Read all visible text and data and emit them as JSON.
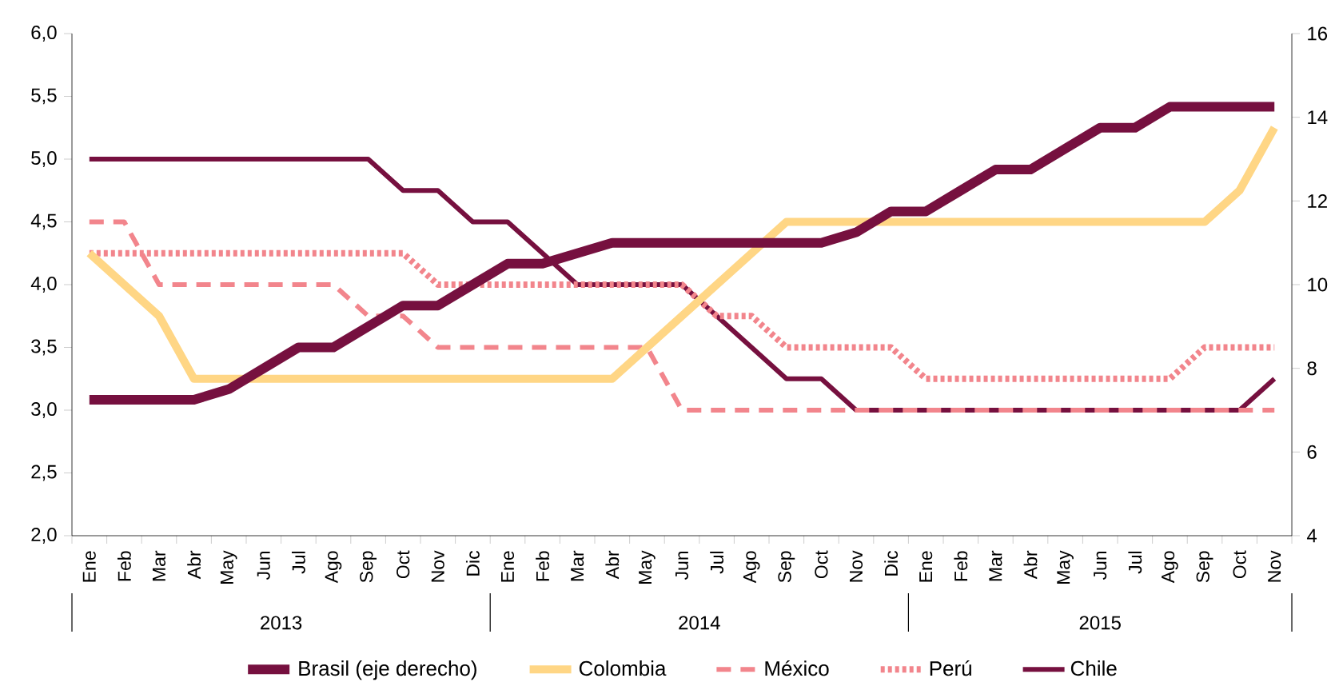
{
  "chart_data": {
    "type": "line",
    "categories": [
      "Ene",
      "Feb",
      "Mar",
      "Abr",
      "May",
      "Jun",
      "Jul",
      "Ago",
      "Sep",
      "Oct",
      "Nov",
      "Dic",
      "Ene",
      "Feb",
      "Mar",
      "Abr",
      "May",
      "Jun",
      "Jul",
      "Ago",
      "Sep",
      "Oct",
      "Nov",
      "Dic",
      "Ene",
      "Feb",
      "Mar",
      "Abr",
      "May",
      "Jun",
      "Jul",
      "Ago",
      "Sep",
      "Oct",
      "Nov"
    ],
    "series": [
      {
        "name": "Brasil (eje derecho)",
        "color": "#76103f",
        "axis": "y2",
        "line_style": "solid",
        "values": [
          7.25,
          7.25,
          7.25,
          7.25,
          7.5,
          8.0,
          8.5,
          8.5,
          9.0,
          9.5,
          9.5,
          10.0,
          10.5,
          10.5,
          10.75,
          11.0,
          11.0,
          11.0,
          11.0,
          11.0,
          11.0,
          11.0,
          11.25,
          11.75,
          11.75,
          12.25,
          12.75,
          12.75,
          13.25,
          13.75,
          13.75,
          14.25,
          14.25,
          14.25,
          14.25
        ]
      },
      {
        "name": "Colombia",
        "color": "#ffd685",
        "line_style": "solid",
        "values": [
          4.25,
          4.0,
          3.75,
          3.25,
          3.25,
          3.25,
          3.25,
          3.25,
          3.25,
          3.25,
          3.25,
          3.25,
          3.25,
          3.25,
          3.25,
          3.25,
          3.5,
          3.75,
          4.0,
          4.25,
          4.5,
          4.5,
          4.5,
          4.5,
          4.5,
          4.5,
          4.5,
          4.5,
          4.5,
          4.5,
          4.5,
          4.5,
          4.5,
          4.75,
          5.25
        ]
      },
      {
        "name": "México",
        "color": "#f2858c",
        "line_style": "dashed",
        "values": [
          4.5,
          4.5,
          4.0,
          4.0,
          4.0,
          4.0,
          4.0,
          4.0,
          3.75,
          3.75,
          3.5,
          3.5,
          3.5,
          3.5,
          3.5,
          3.5,
          3.5,
          3.0,
          3.0,
          3.0,
          3.0,
          3.0,
          3.0,
          3.0,
          3.0,
          3.0,
          3.0,
          3.0,
          3.0,
          3.0,
          3.0,
          3.0,
          3.0,
          3.0,
          3.0
        ]
      },
      {
        "name": "Perú",
        "color": "#f2858c",
        "line_style": "dotted",
        "values": [
          4.25,
          4.25,
          4.25,
          4.25,
          4.25,
          4.25,
          4.25,
          4.25,
          4.25,
          4.25,
          4.0,
          4.0,
          4.0,
          4.0,
          4.0,
          4.0,
          4.0,
          4.0,
          3.75,
          3.75,
          3.5,
          3.5,
          3.5,
          3.5,
          3.25,
          3.25,
          3.25,
          3.25,
          3.25,
          3.25,
          3.25,
          3.25,
          3.5,
          3.5,
          3.5
        ]
      },
      {
        "name": "Chile",
        "color": "#76103f",
        "line_style": "solid",
        "values": [
          5.0,
          5.0,
          5.0,
          5.0,
          5.0,
          5.0,
          5.0,
          5.0,
          5.0,
          4.75,
          4.75,
          4.5,
          4.5,
          4.25,
          4.0,
          4.0,
          4.0,
          4.0,
          3.75,
          3.5,
          3.25,
          3.25,
          3.0,
          3.0,
          3.0,
          3.0,
          3.0,
          3.0,
          3.0,
          3.0,
          3.0,
          3.0,
          3.0,
          3.0,
          3.25
        ]
      }
    ],
    "ylim": [
      2.0,
      6.0
    ],
    "yticks": [
      {
        "value": 2.0,
        "label": "2,0"
      },
      {
        "value": 2.5,
        "label": "2,5"
      },
      {
        "value": 3.0,
        "label": "3,0"
      },
      {
        "value": 3.5,
        "label": "3,5"
      },
      {
        "value": 4.0,
        "label": "4,0"
      },
      {
        "value": 4.5,
        "label": "4,5"
      },
      {
        "value": 5.0,
        "label": "5,0"
      },
      {
        "value": 5.5,
        "label": "5,5"
      },
      {
        "value": 6.0,
        "label": "6,0"
      }
    ],
    "y2lim": [
      4,
      16
    ],
    "y2ticks": [
      4,
      6,
      8,
      10,
      12,
      14,
      16
    ],
    "annotations": [
      "2013",
      "2014",
      "2015"
    ],
    "grid": false,
    "legend": "bottom"
  }
}
